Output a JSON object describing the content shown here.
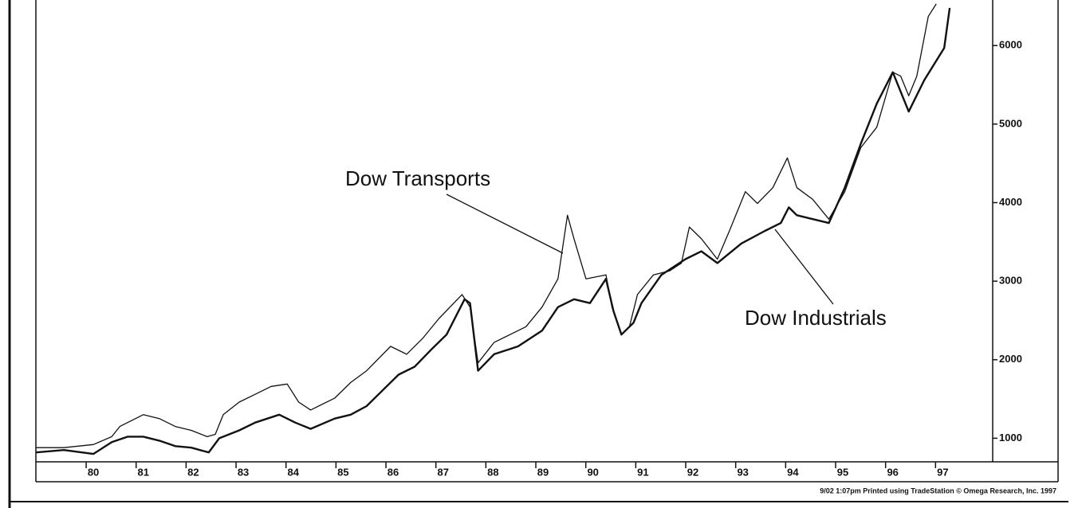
{
  "chart_data": {
    "type": "line",
    "annotations": [
      "Dow Transports",
      "Dow Industrials"
    ],
    "footer": "9/02 1:07pm Printed using TradeStation © Omega Research, Inc. 1997",
    "xlim": [
      78.85,
      98.0
    ],
    "xticks": [
      80,
      81,
      82,
      83,
      84,
      85,
      86,
      87,
      88,
      89,
      90,
      91,
      92,
      93,
      94,
      95,
      96,
      97
    ],
    "ylim": [
      700,
      6580
    ],
    "yticks": [
      1000,
      2000,
      3000,
      4000,
      5000,
      6000
    ],
    "series": [
      {
        "name": "Dow Transports",
        "color": "#111111",
        "x": [
          78.85,
          79.41,
          80.0,
          80.37,
          80.53,
          81.0,
          81.32,
          81.64,
          81.96,
          82.28,
          82.44,
          82.6,
          82.92,
          83.24,
          83.56,
          83.88,
          84.11,
          84.35,
          84.83,
          85.15,
          85.47,
          85.95,
          86.27,
          86.59,
          86.91,
          87.38,
          87.54,
          87.7,
          88.02,
          88.34,
          88.66,
          88.98,
          89.3,
          89.49,
          89.62,
          89.86,
          90.26,
          90.38,
          90.57,
          90.73,
          90.89,
          91.21,
          91.53,
          91.77,
          91.93,
          92.17,
          92.49,
          92.73,
          93.05,
          93.29,
          93.6,
          93.89,
          94.08,
          94.4,
          94.72,
          95.04,
          95.36,
          95.68,
          96.0,
          96.16,
          96.32,
          96.48,
          96.71,
          96.87
        ],
        "values": [
          880,
          880,
          920,
          1020,
          1150,
          1300,
          1250,
          1150,
          1100,
          1020,
          1050,
          1300,
          1460,
          1560,
          1660,
          1690,
          1460,
          1360,
          1510,
          1710,
          1860,
          2170,
          2070,
          2270,
          2520,
          2830,
          2670,
          1960,
          2220,
          2320,
          2420,
          2670,
          3030,
          3840,
          3540,
          3030,
          3080,
          2670,
          2320,
          2420,
          2830,
          3080,
          3130,
          3230,
          3690,
          3540,
          3280,
          3640,
          4140,
          3990,
          4190,
          4570,
          4190,
          4040,
          3790,
          4140,
          4700,
          4960,
          5660,
          5610,
          5360,
          5610,
          6370,
          6530
        ]
      },
      {
        "name": "Dow Industrials",
        "color": "#111111",
        "x": [
          78.85,
          79.41,
          80.0,
          80.37,
          80.69,
          81.0,
          81.32,
          81.64,
          81.96,
          82.31,
          82.52,
          82.92,
          83.24,
          83.72,
          84.04,
          84.35,
          84.83,
          85.15,
          85.47,
          85.79,
          86.11,
          86.43,
          86.75,
          87.07,
          87.43,
          87.54,
          87.7,
          88.02,
          88.5,
          88.98,
          89.3,
          89.62,
          89.94,
          90.26,
          90.41,
          90.57,
          90.81,
          90.97,
          91.37,
          91.85,
          92.17,
          92.49,
          92.97,
          93.44,
          93.76,
          93.92,
          94.08,
          94.4,
          94.72,
          95.04,
          95.36,
          95.68,
          96.0,
          96.32,
          96.63,
          97.03,
          97.14
        ],
        "values": [
          820,
          850,
          800,
          950,
          1020,
          1020,
          970,
          900,
          880,
          820,
          1000,
          1100,
          1200,
          1300,
          1200,
          1120,
          1250,
          1300,
          1410,
          1610,
          1810,
          1910,
          2120,
          2320,
          2770,
          2720,
          1860,
          2070,
          2170,
          2370,
          2670,
          2770,
          2720,
          3030,
          2620,
          2320,
          2470,
          2720,
          3080,
          3280,
          3380,
          3230,
          3480,
          3640,
          3740,
          3940,
          3840,
          3790,
          3740,
          4190,
          4750,
          5260,
          5660,
          5160,
          5560,
          5970,
          6480
        ]
      }
    ]
  }
}
